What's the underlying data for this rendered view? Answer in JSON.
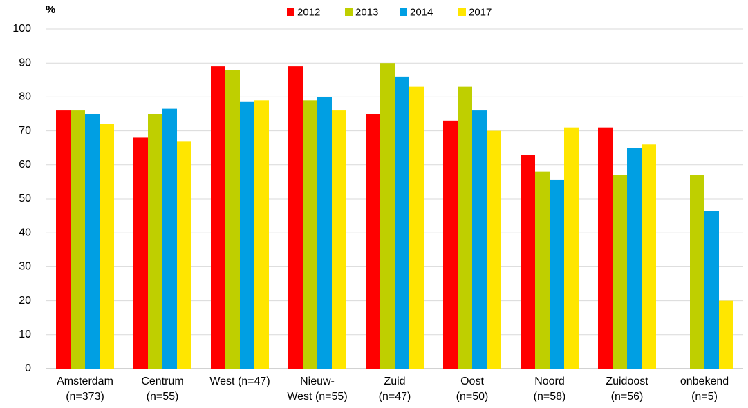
{
  "chart_data": {
    "type": "bar",
    "y_label": "%",
    "categories": [
      [
        "Amsterdam",
        "(n=373)"
      ],
      [
        "Centrum",
        "(n=55)"
      ],
      [
        "West (n=47)"
      ],
      [
        "Nieuw-",
        "West (n=55)"
      ],
      [
        "Zuid",
        "(n=47)"
      ],
      [
        "Oost",
        "(n=50)"
      ],
      [
        "Noord",
        "(n=58)"
      ],
      [
        "Zuidoost",
        "(n=56)"
      ],
      [
        "onbekend",
        "(n=5)"
      ]
    ],
    "series": [
      {
        "name": "2012",
        "color": "#ff0000",
        "values": [
          76,
          68,
          89,
          89,
          75,
          73,
          63,
          71,
          null
        ]
      },
      {
        "name": "2013",
        "color": "#bfcf00",
        "values": [
          76,
          75,
          88,
          79,
          90,
          83,
          58,
          57,
          57
        ]
      },
      {
        "name": "2014",
        "color": "#009fe3",
        "values": [
          75,
          76.5,
          78.5,
          80,
          86,
          76,
          55.5,
          65,
          46.5
        ]
      },
      {
        "name": "2017",
        "color": "#ffe600",
        "values": [
          72,
          67,
          79,
          76,
          83,
          70,
          71,
          66,
          20
        ]
      }
    ],
    "ylim": [
      0,
      100
    ],
    "yticks": [
      0,
      10,
      20,
      30,
      40,
      50,
      60,
      70,
      80,
      90,
      100
    ],
    "grid": true,
    "legend": "top"
  }
}
